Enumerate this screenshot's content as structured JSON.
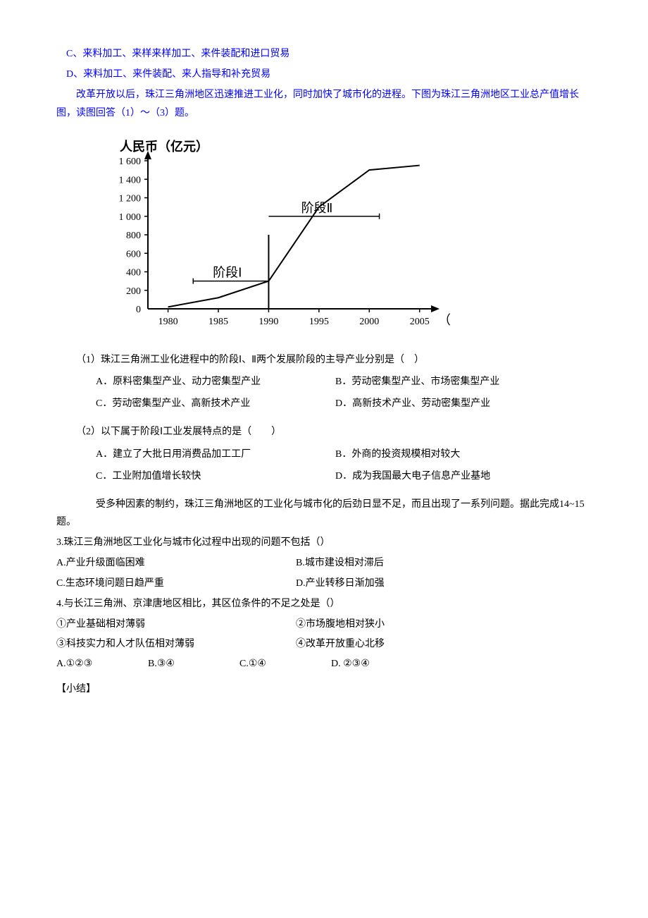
{
  "top_options": {
    "c": "C、来料加工、来样来样加工、来件装配和进口贸易",
    "d": "D、来料加工、来件装配、来人指导和补充贸易"
  },
  "intro": "　　改革开放以后，珠江三角洲地区迅速推进工业化，同时加快了城市化的进程。下图为珠江三角洲地区工业总产值增长图，读图回答（1）～（3）题。",
  "chart": {
    "type": "line",
    "y_label": "人民币（亿元）",
    "x_label": "（年）",
    "y_ticks": [
      0,
      200,
      400,
      600,
      800,
      1000,
      1200,
      1400,
      1600
    ],
    "y_tick_labels": [
      "0",
      "200",
      "400",
      "600",
      "800",
      "1 000",
      "1 200",
      "1 400",
      "1 600"
    ],
    "x_ticks": [
      1980,
      1985,
      1990,
      1995,
      2000,
      2005
    ],
    "x_tick_labels": [
      "1980",
      "1985",
      "1990",
      "1995",
      "2000",
      "2005"
    ],
    "stage1_label": "阶段Ⅰ",
    "stage2_label": "阶段Ⅱ",
    "line_points": [
      {
        "x": 1980,
        "y": 20
      },
      {
        "x": 1985,
        "y": 120
      },
      {
        "x": 1990,
        "y": 300
      },
      {
        "x": 1995,
        "y": 1100
      },
      {
        "x": 2000,
        "y": 1500
      },
      {
        "x": 2005,
        "y": 1550
      }
    ],
    "colors": {
      "axis": "#000000",
      "line": "#000000",
      "text": "#000000",
      "bg": "#ffffff"
    },
    "font_family": "KaiTi, 楷体, serif",
    "label_fontsize": 18,
    "tick_fontsize": 14,
    "stage_fontsize": 18
  },
  "q1": {
    "stem": "（1）珠江三角洲工业化进程中的阶段Ⅰ、Ⅱ两个发展阶段的主导产业分别是（　）",
    "a": "A．原料密集型产业、动力密集型产业",
    "b": "B．劳动密集型产业、市场密集型产业",
    "c": "C．劳动密集型产业、高新技术产业",
    "d": "D．高新技术产业、劳动密集型产业"
  },
  "q2": {
    "stem": "（2）以下属于阶段Ⅰ工业发展特点的是（　　）",
    "a": "A．建立了大批日用消费品加工工厂",
    "b": "B．外商的投资规模相对较大",
    "c": "C．工业附加值增长较快",
    "d": "D．成为我国最大电子信息产业基地"
  },
  "context2": "　　受多种因素的制约，珠江三角洲地区的工业化与城市化的后劲日显不足，而且出现了一系列问题。据此完成14~15题。",
  "q3": {
    "stem": "3.珠江三角洲地区工业化与城市化过程中出现的问题不包括（）",
    "a": "A.产业升级面临困难",
    "b": "B.城市建设相对滞后",
    "c": "C.生态环境问题日趋严重",
    "d": "D.产业转移日渐加强"
  },
  "q4": {
    "stem": "4.与长江三角洲、京津唐地区相比，其区位条件的不足之处是（）",
    "i": "①产业基础相对薄弱",
    "ii": "②市场腹地相对狭小",
    "iii": "③科技实力和人才队伍相对薄弱",
    "iv": "④改革开放重心北移",
    "a": "A.①②③",
    "b": "B.③④",
    "c": "C.①④",
    "d": "D. ②③④"
  },
  "summary_label": "【小结】"
}
